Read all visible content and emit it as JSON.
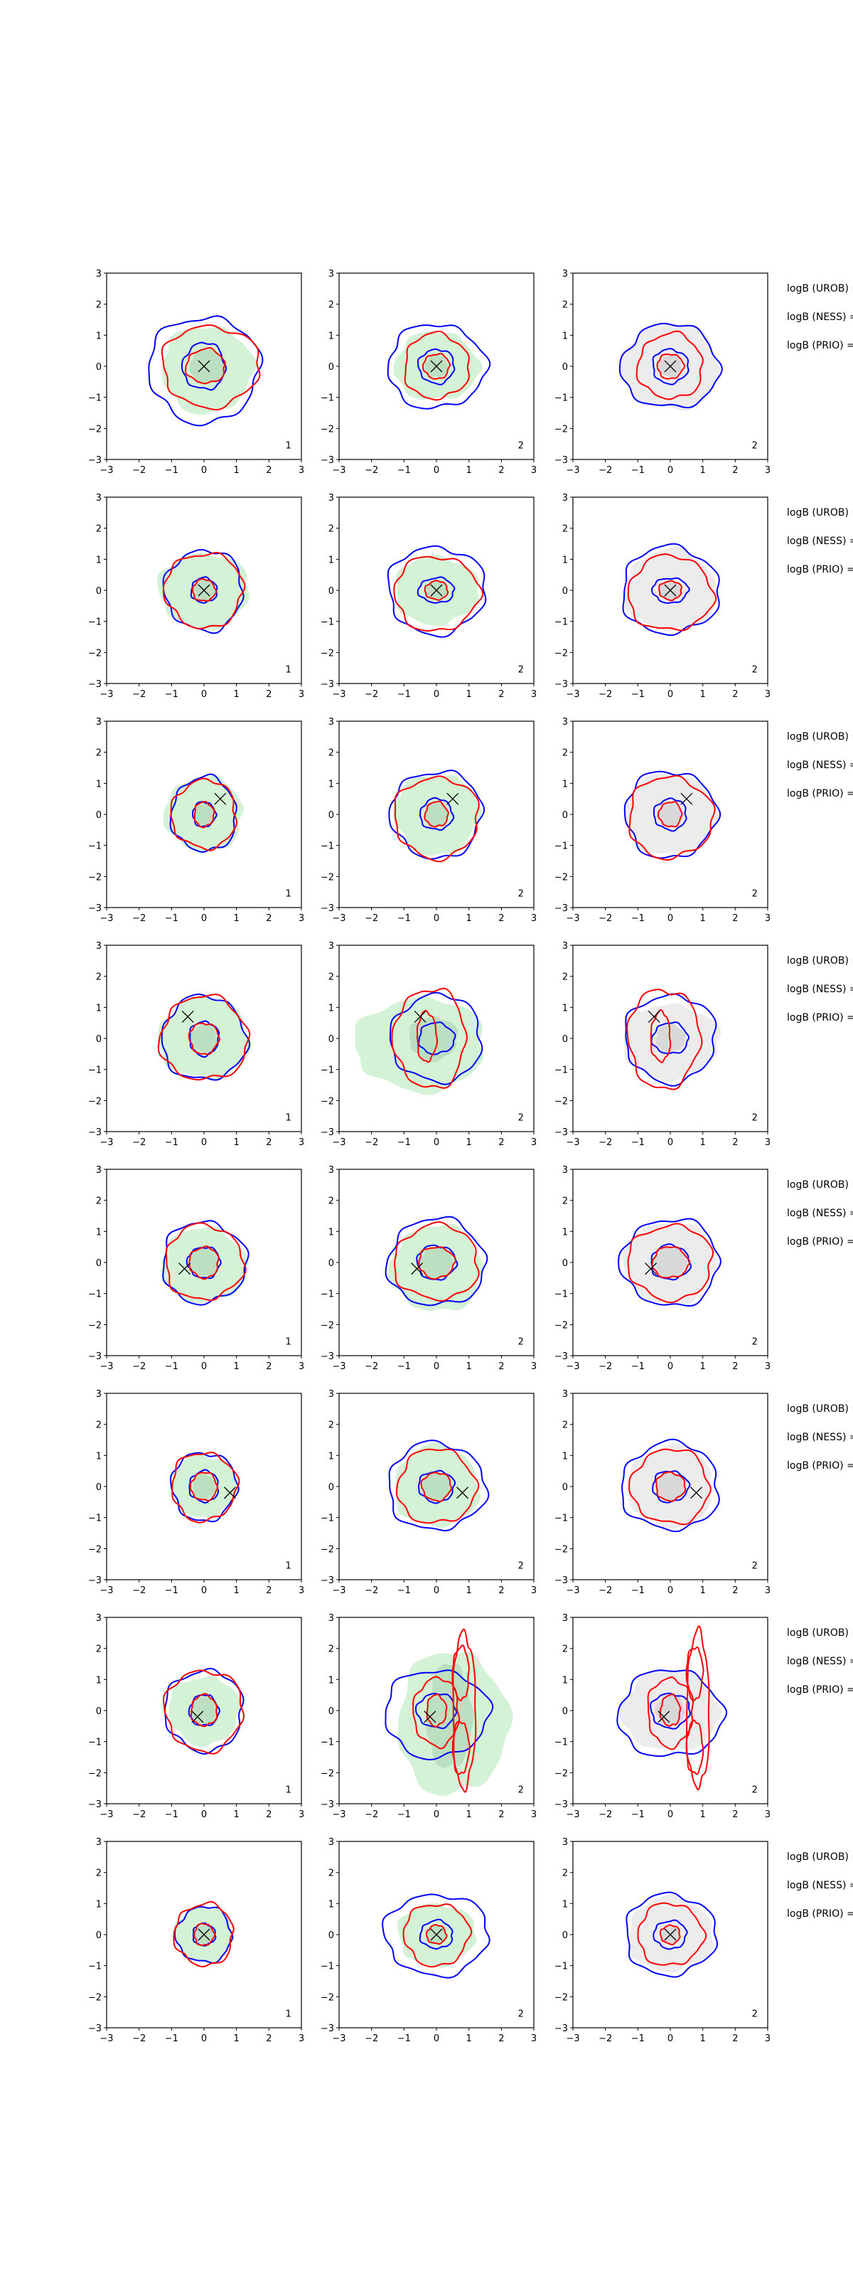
{
  "chart_data": {
    "type": "contour-grid",
    "rows": 8,
    "cols": 3,
    "xlim": [
      -3,
      3
    ],
    "ylim": [
      -3,
      3
    ],
    "ticks": [
      -3,
      -2,
      -1,
      0,
      1,
      2,
      3
    ],
    "tick_labels": [
      "−3",
      "−2",
      "−1",
      "0",
      "1",
      "2",
      "3"
    ],
    "side_labels": [
      "logB (UROB) =",
      "logB (NESS) =",
      "logB (PRIO) ="
    ],
    "panel_labels": [
      "1",
      "2",
      "2"
    ],
    "colors": {
      "blue": "#0000ff",
      "red": "#ff0000",
      "green_fill": "#d3f2d6",
      "green_core": "#bcdfc2",
      "gray_fill": "#ececec",
      "gray_core": "#d8d8d8",
      "marker": "#000000"
    },
    "panels": [
      [
        {
          "marker": [
            0,
            0
          ],
          "fill": [
            0.1,
            -0.1,
            1.4,
            1.4
          ],
          "core": [
            0.1,
            0,
            0.55,
            0.55
          ],
          "blue": [
            [
              0,
              -0.1,
              1.7,
              1.7
            ],
            [
              0,
              0,
              0.65,
              0.75
            ]
          ],
          "red": [
            [
              0.2,
              0,
              1.5,
              1.3
            ],
            [
              0.05,
              0,
              0.6,
              0.55
            ]
          ]
        },
        {
          "marker": [
            0,
            0
          ],
          "fill": [
            0,
            0,
            1.3,
            1.1
          ],
          "core": [
            0,
            0,
            0.35,
            0.35
          ],
          "blue": [
            [
              0,
              0,
              1.5,
              1.35
            ],
            [
              0,
              0,
              0.55,
              0.55
            ]
          ],
          "red": [
            [
              0,
              0,
              1.0,
              1.05
            ],
            [
              0,
              0,
              0.4,
              0.4
            ]
          ]
        },
        {
          "marker": [
            0,
            0
          ],
          "fill": [
            0,
            0,
            1.5,
            1.4
          ],
          "core": [
            0,
            0,
            0.35,
            0.35
          ],
          "blue": [
            [
              0,
              0,
              1.5,
              1.35
            ],
            [
              0,
              0,
              0.55,
              0.55
            ]
          ],
          "red": [
            [
              0,
              0,
              1.0,
              1.05
            ],
            [
              0,
              0,
              0.4,
              0.4
            ]
          ]
        }
      ],
      [
        {
          "marker": [
            0,
            0
          ],
          "fill": [
            0,
            0,
            1.4,
            1.2
          ],
          "core": [
            0,
            0,
            0.35,
            0.35
          ],
          "blue": [
            [
              0,
              0,
              1.2,
              1.3
            ],
            [
              0,
              0,
              0.4,
              0.4
            ]
          ],
          "red": [
            [
              0,
              0,
              1.2,
              1.2
            ],
            [
              0,
              0,
              0.35,
              0.35
            ]
          ]
        },
        {
          "marker": [
            0,
            0
          ],
          "fill": [
            0,
            0,
            1.3,
            1.1
          ],
          "core": [
            0,
            0,
            0.35,
            0.3
          ],
          "blue": [
            [
              0,
              0,
              1.5,
              1.4
            ],
            [
              0,
              0,
              0.55,
              0.4
            ]
          ],
          "red": [
            [
              0,
              -0.1,
              1.3,
              1.2
            ],
            [
              0,
              0,
              0.35,
              0.3
            ]
          ]
        },
        {
          "marker": [
            0,
            0
          ],
          "fill": [
            0,
            0,
            1.4,
            1.3
          ],
          "core": [
            0,
            0,
            0.35,
            0.3
          ],
          "blue": [
            [
              0,
              0,
              1.5,
              1.4
            ],
            [
              0,
              0,
              0.55,
              0.4
            ]
          ],
          "red": [
            [
              0,
              -0.1,
              1.3,
              1.2
            ],
            [
              0,
              0,
              0.35,
              0.3
            ]
          ]
        }
      ],
      [
        {
          "marker": [
            0.5,
            0.5
          ],
          "fill": [
            0,
            0,
            1.2,
            1.2
          ],
          "core": [
            0,
            0,
            0.3,
            0.35
          ],
          "blue": [
            [
              0,
              0,
              1.0,
              1.2
            ],
            [
              0,
              0,
              0.35,
              0.4
            ]
          ],
          "red": [
            [
              0,
              0,
              1.0,
              1.1
            ],
            [
              0,
              0,
              0.3,
              0.4
            ]
          ]
        },
        {
          "marker": [
            0.5,
            0.5
          ],
          "fill": [
            0,
            0,
            1.3,
            1.3
          ],
          "core": [
            0,
            0,
            0.35,
            0.4
          ],
          "blue": [
            [
              0,
              0,
              1.4,
              1.4
            ],
            [
              0,
              0,
              0.5,
              0.5
            ]
          ],
          "red": [
            [
              0,
              -0.1,
              1.3,
              1.3
            ],
            [
              0,
              0,
              0.35,
              0.4
            ]
          ]
        },
        {
          "marker": [
            0.5,
            0.5
          ],
          "fill": [
            0,
            0,
            1.4,
            1.3
          ],
          "core": [
            0,
            0,
            0.35,
            0.4
          ],
          "blue": [
            [
              0,
              0,
              1.4,
              1.4
            ],
            [
              0,
              0,
              0.5,
              0.5
            ]
          ],
          "red": [
            [
              0,
              -0.1,
              1.3,
              1.3
            ],
            [
              0,
              0,
              0.35,
              0.4
            ]
          ]
        }
      ],
      [
        {
          "marker": [
            -0.5,
            0.7
          ],
          "fill": [
            0,
            0,
            1.4,
            1.3
          ],
          "core": [
            0,
            0,
            0.4,
            0.45
          ],
          "blue": [
            [
              0,
              0,
              1.3,
              1.35
            ],
            [
              0,
              0,
              0.45,
              0.55
            ]
          ],
          "red": [
            [
              0,
              0,
              1.35,
              1.35
            ],
            [
              0,
              0,
              0.45,
              0.5
            ]
          ]
        },
        {
          "marker": [
            -0.5,
            0.7
          ],
          "fill": [
            -0.5,
            -0.2,
            2.0,
            1.5
          ],
          "core": [
            -0.1,
            0,
            0.75,
            0.7
          ],
          "blue": [
            [
              0,
              0,
              1.4,
              1.4
            ],
            [
              0,
              0,
              0.55,
              0.5
            ]
          ],
          "red": [
            [
              -0.2,
              0,
              1.1,
              1.6
            ],
            [
              -0.3,
              0.05,
              0.3,
              0.8
            ]
          ]
        },
        {
          "marker": [
            -0.5,
            0.7
          ],
          "fill": [
            0,
            -0.1,
            1.5,
            1.2
          ],
          "core": [
            0,
            0,
            0.45,
            0.45
          ],
          "blue": [
            [
              0,
              0,
              1.4,
              1.4
            ],
            [
              0,
              0,
              0.55,
              0.5
            ]
          ],
          "red": [
            [
              -0.2,
              0,
              1.1,
              1.6
            ],
            [
              -0.3,
              0.05,
              0.3,
              0.8
            ]
          ]
        }
      ],
      [
        {
          "marker": [
            -0.6,
            -0.2
          ],
          "fill": [
            0,
            -0.1,
            1.3,
            1.2
          ],
          "core": [
            0,
            0,
            0.45,
            0.45
          ],
          "blue": [
            [
              0,
              0,
              1.3,
              1.3
            ],
            [
              0,
              0,
              0.5,
              0.5
            ]
          ],
          "red": [
            [
              0,
              0,
              1.2,
              1.2
            ],
            [
              0,
              0,
              0.45,
              0.5
            ]
          ]
        },
        {
          "marker": [
            -0.6,
            -0.2
          ],
          "fill": [
            0,
            -0.2,
            1.4,
            1.4
          ],
          "core": [
            0,
            0,
            0.5,
            0.5
          ],
          "blue": [
            [
              0,
              0,
              1.5,
              1.4
            ],
            [
              0,
              0,
              0.6,
              0.55
            ]
          ],
          "red": [
            [
              0,
              0,
              1.3,
              1.2
            ],
            [
              0,
              0,
              0.55,
              0.5
            ]
          ]
        },
        {
          "marker": [
            -0.6,
            -0.2
          ],
          "fill": [
            0,
            0,
            1.4,
            1.3
          ],
          "core": [
            0,
            0,
            0.5,
            0.5
          ],
          "blue": [
            [
              0,
              0,
              1.5,
              1.4
            ],
            [
              0,
              0,
              0.6,
              0.55
            ]
          ],
          "red": [
            [
              0,
              0,
              1.3,
              1.2
            ],
            [
              0,
              0,
              0.55,
              0.5
            ]
          ]
        }
      ],
      [
        {
          "marker": [
            0.8,
            -0.2
          ],
          "fill": [
            0,
            0,
            1.0,
            1.0
          ],
          "core": [
            0,
            0,
            0.35,
            0.4
          ],
          "blue": [
            [
              0,
              0,
              1.0,
              1.1
            ],
            [
              0,
              0,
              0.45,
              0.5
            ]
          ],
          "red": [
            [
              0,
              0,
              1.0,
              1.1
            ],
            [
              0,
              0,
              0.4,
              0.45
            ]
          ]
        },
        {
          "marker": [
            0.8,
            -0.2
          ],
          "fill": [
            0,
            0,
            1.3,
            1.3
          ],
          "core": [
            0,
            0,
            0.45,
            0.45
          ],
          "blue": [
            [
              0,
              0,
              1.5,
              1.4
            ],
            [
              0,
              0,
              0.55,
              0.5
            ]
          ],
          "red": [
            [
              0,
              0,
              1.2,
              1.2
            ],
            [
              0,
              0,
              0.45,
              0.45
            ]
          ]
        },
        {
          "marker": [
            0.8,
            -0.2
          ],
          "fill": [
            0,
            0,
            1.3,
            1.3
          ],
          "core": [
            0,
            0,
            0.45,
            0.45
          ],
          "blue": [
            [
              0,
              0,
              1.5,
              1.4
            ],
            [
              0,
              0,
              0.55,
              0.5
            ]
          ],
          "red": [
            [
              0,
              0,
              1.2,
              1.2
            ],
            [
              0,
              0,
              0.45,
              0.45
            ]
          ]
        }
      ],
      [
        {
          "marker": [
            -0.2,
            -0.2
          ],
          "fill": [
            0,
            0,
            1.1,
            1.1
          ],
          "core": [
            0,
            0,
            0.4,
            0.45
          ],
          "blue": [
            [
              0,
              0,
              1.2,
              1.3
            ],
            [
              0,
              0,
              0.45,
              0.5
            ]
          ],
          "red": [
            [
              0,
              0,
              1.2,
              1.3
            ],
            [
              0,
              0,
              0.4,
              0.5
            ]
          ]
        },
        {
          "marker": [
            -0.2,
            -0.2
          ],
          "fill": [
            0.5,
            -0.4,
            1.7,
            2.3
          ],
          "core": [
            0.4,
            -0.2,
            0.7,
            1.7
          ],
          "blue": [
            [
              0,
              -0.1,
              1.6,
              1.4
            ],
            [
              0,
              0,
              0.6,
              0.55
            ]
          ],
          "red": [
            [
              0.85,
              0,
              0.35,
              2.5
            ],
            [
              0.75,
              1.2,
              0.25,
              0.85
            ],
            [
              0.75,
              -1.2,
              0.25,
              0.85
            ],
            [
              0,
              -0.05,
              0.7,
              1.1
            ],
            [
              0,
              0,
              0.3,
              0.5
            ]
          ]
        },
        {
          "marker": [
            -0.2,
            -0.2
          ],
          "fill": [
            0,
            0,
            1.5,
            1.3
          ],
          "core": [
            0,
            0,
            0.45,
            0.5
          ],
          "blue": [
            [
              0,
              -0.1,
              1.6,
              1.4
            ],
            [
              0,
              0,
              0.6,
              0.55
            ]
          ],
          "red": [
            [
              0.85,
              0,
              0.35,
              2.5
            ],
            [
              0.75,
              1.2,
              0.25,
              0.85
            ],
            [
              0.75,
              -1.2,
              0.25,
              0.85
            ],
            [
              0,
              -0.05,
              0.7,
              1.1
            ],
            [
              0,
              0,
              0.3,
              0.5
            ]
          ]
        }
      ],
      [
        {
          "marker": [
            0,
            0
          ],
          "fill": [
            0,
            0,
            0.9,
            0.9
          ],
          "core": [
            0,
            0,
            0.3,
            0.3
          ],
          "blue": [
            [
              0,
              0,
              0.85,
              0.9
            ],
            [
              0,
              0,
              0.35,
              0.35
            ]
          ],
          "red": [
            [
              0,
              0,
              0.9,
              1.0
            ],
            [
              0,
              0,
              0.3,
              0.35
            ]
          ]
        },
        {
          "marker": [
            0,
            0
          ],
          "fill": [
            0,
            0,
            1.2,
            1.0
          ],
          "core": [
            0,
            0,
            0.3,
            0.3
          ],
          "blue": [
            [
              0,
              0,
              1.6,
              1.3
            ],
            [
              0,
              0,
              0.5,
              0.45
            ]
          ],
          "red": [
            [
              0,
              0,
              1.0,
              1.0
            ],
            [
              0,
              0,
              0.3,
              0.3
            ]
          ]
        },
        {
          "marker": [
            0,
            0
          ],
          "fill": [
            0,
            0,
            1.3,
            1.2
          ],
          "core": [
            0,
            0,
            0.3,
            0.3
          ],
          "blue": [
            [
              0,
              0,
              1.4,
              1.3
            ],
            [
              0,
              0,
              0.5,
              0.45
            ]
          ],
          "red": [
            [
              0,
              0,
              1.0,
              1.0
            ],
            [
              0,
              0,
              0.3,
              0.3
            ]
          ]
        }
      ]
    ]
  }
}
